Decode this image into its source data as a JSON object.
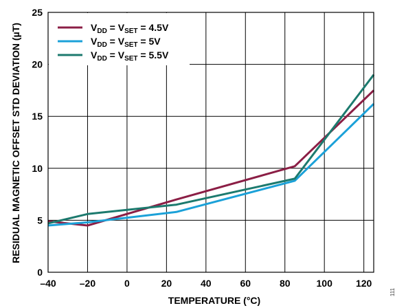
{
  "chart_data": {
    "type": "line",
    "xlabel": "TEMPERATURE (°C)",
    "ylabel": "RESIDUAL MAGNETIC OFFSET STD DEVIATION (µT)",
    "xlim": [
      -40,
      125
    ],
    "ylim": [
      0,
      25
    ],
    "xticks": [
      -40,
      -20,
      0,
      20,
      40,
      60,
      80,
      100,
      120
    ],
    "yticks": [
      0,
      5,
      10,
      15,
      20,
      25
    ],
    "x_tick_labels": [
      "–40",
      "–20",
      "0",
      "20",
      "40",
      "60",
      "80",
      "100",
      "120"
    ],
    "y_tick_labels": [
      "0",
      "5",
      "10",
      "15",
      "20",
      "25"
    ],
    "grid": true,
    "legend_position": "top-left",
    "series": [
      {
        "name": "VDD = VSET = 4.5V",
        "legend_label": {
          "v1": "V",
          "sub1": "DD",
          "mid": " = V",
          "sub2": "SET",
          "tail": " = 4.5V"
        },
        "color": "#8b1e45",
        "x": [
          -40,
          -20,
          25,
          85,
          125
        ],
        "y": [
          4.9,
          4.5,
          7.0,
          10.2,
          17.5
        ]
      },
      {
        "name": "VDD = VSET = 5V",
        "legend_label": {
          "v1": "V",
          "sub1": "DD",
          "mid": " = V",
          "sub2": "SET",
          "tail": " = 5V"
        },
        "color": "#1ba1d8",
        "x": [
          -40,
          -20,
          25,
          85,
          125
        ],
        "y": [
          4.5,
          4.8,
          5.8,
          8.8,
          16.2
        ]
      },
      {
        "name": "VDD = VSET = 5.5V",
        "legend_label": {
          "v1": "V",
          "sub1": "DD",
          "mid": " = V",
          "sub2": "SET",
          "tail": " = 5.5V"
        },
        "color": "#1c7a6e",
        "x": [
          -40,
          -20,
          25,
          85,
          125
        ],
        "y": [
          4.7,
          5.6,
          6.5,
          9.0,
          19.0
        ]
      }
    ],
    "figure_id": "111"
  }
}
